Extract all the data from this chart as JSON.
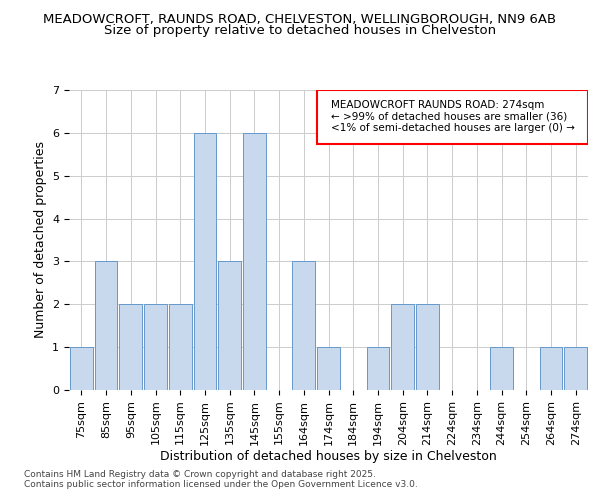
{
  "title_line1": "MEADOWCROFT, RAUNDS ROAD, CHELVESTON, WELLINGBOROUGH, NN9 6AB",
  "title_line2": "Size of property relative to detached houses in Chelveston",
  "xlabel": "Distribution of detached houses by size in Chelveston",
  "ylabel": "Number of detached properties",
  "categories": [
    "75sqm",
    "85sqm",
    "95sqm",
    "105sqm",
    "115sqm",
    "125sqm",
    "135sqm",
    "145sqm",
    "155sqm",
    "164sqm",
    "174sqm",
    "184sqm",
    "194sqm",
    "204sqm",
    "214sqm",
    "224sqm",
    "234sqm",
    "244sqm",
    "254sqm",
    "264sqm",
    "274sqm"
  ],
  "values": [
    1,
    3,
    2,
    2,
    2,
    6,
    3,
    6,
    0,
    3,
    1,
    0,
    1,
    2,
    2,
    0,
    0,
    1,
    0,
    1,
    1
  ],
  "bar_color": "#c8d9ed",
  "bar_edge_color": "#6699cc",
  "ylim": [
    0,
    7
  ],
  "yticks": [
    0,
    1,
    2,
    3,
    4,
    5,
    6,
    7
  ],
  "grid_color": "#cccccc",
  "annotation_text_line1": "MEADOWCROFT RAUNDS ROAD: 274sqm",
  "annotation_text_line2": "← >99% of detached houses are smaller (36)",
  "annotation_text_line3": "<1% of semi-detached houses are larger (0) →",
  "annotation_box_edge_color": "#ff0000",
  "footer_line1": "Contains HM Land Registry data © Crown copyright and database right 2025.",
  "footer_line2": "Contains public sector information licensed under the Open Government Licence v3.0.",
  "bg_color": "#ffffff",
  "title_fontsize": 9.5,
  "subtitle_fontsize": 9.5,
  "ylabel_fontsize": 9,
  "xlabel_fontsize": 9,
  "tick_fontsize": 8,
  "annotation_fontsize": 7.5,
  "footer_fontsize": 6.5
}
